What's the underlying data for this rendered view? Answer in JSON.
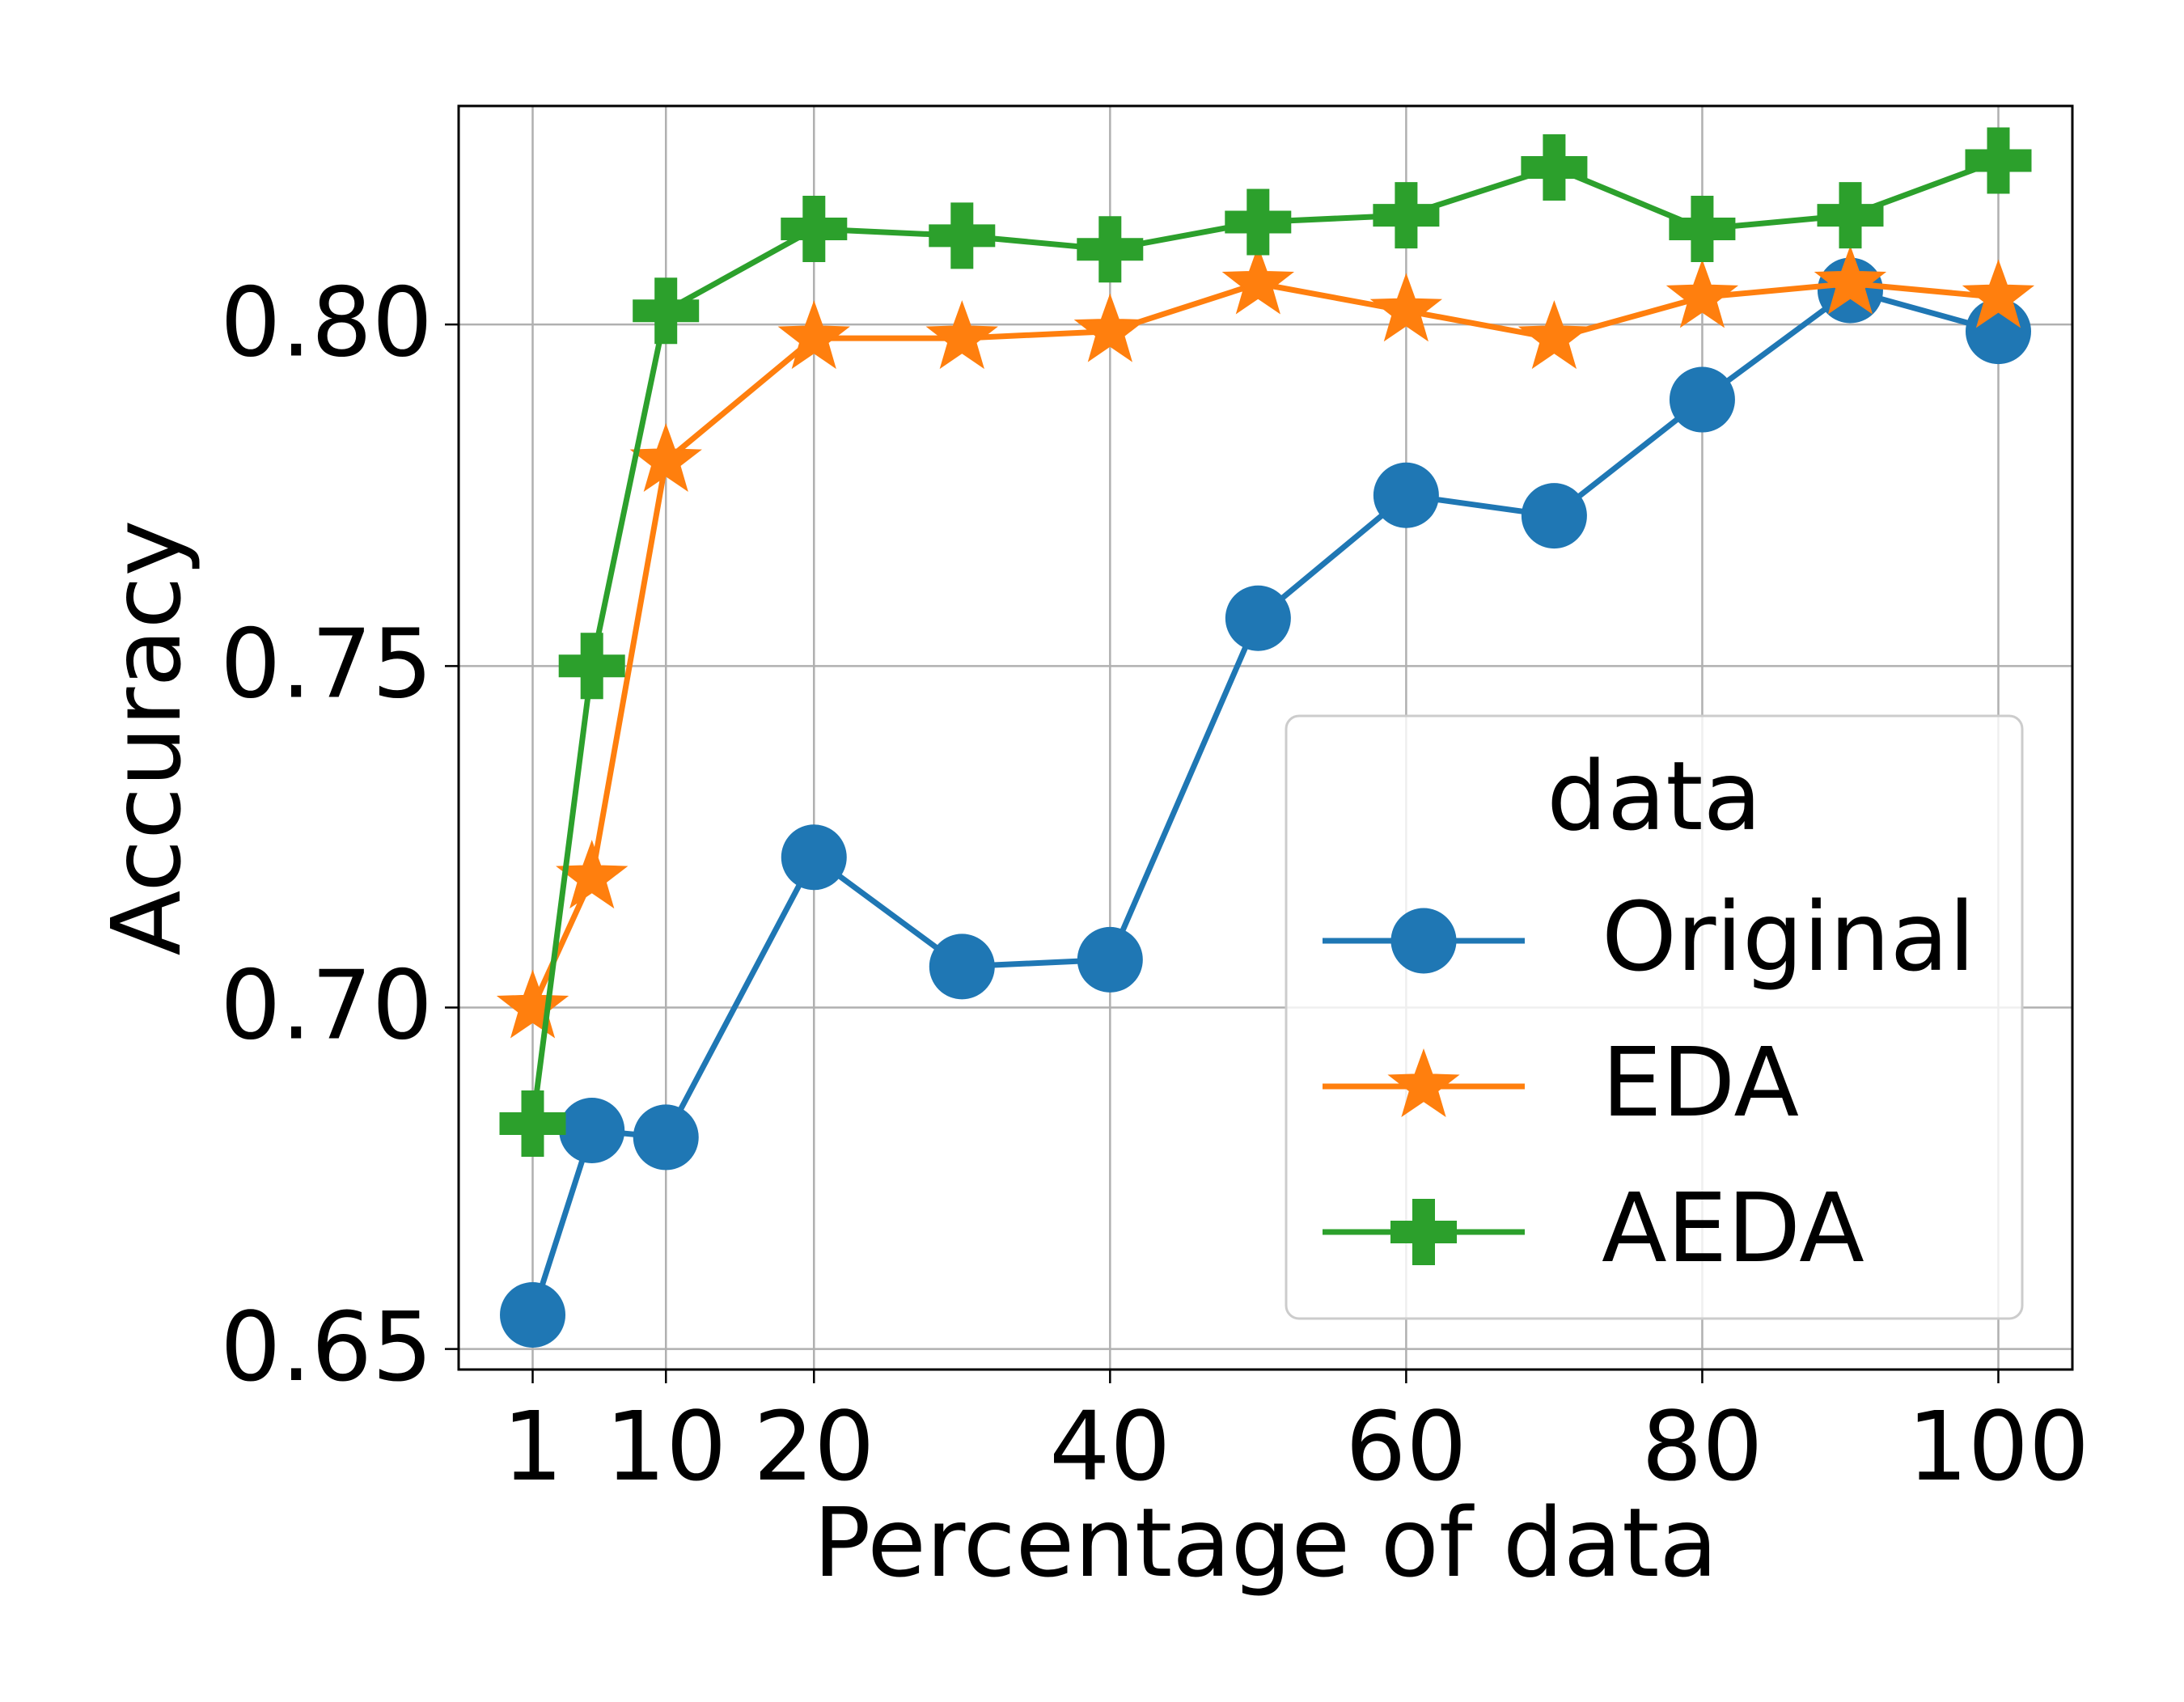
{
  "chart_data": {
    "type": "line",
    "title": "",
    "xlabel": "Percentage of data",
    "ylabel": "Accuracy",
    "x": [
      1,
      5,
      10,
      20,
      30,
      40,
      50,
      60,
      70,
      80,
      90,
      100
    ],
    "xticks": [
      1,
      10,
      20,
      40,
      60,
      80,
      100
    ],
    "xtick_labels": [
      "1",
      "10",
      "20",
      "40",
      "60",
      "80",
      "100"
    ],
    "xlim": [
      -4,
      105
    ],
    "yticks": [
      0.65,
      0.7,
      0.75,
      0.8
    ],
    "ytick_labels": [
      "0.65",
      "0.70",
      "0.75",
      "0.80"
    ],
    "ylim": [
      0.647,
      0.832
    ],
    "grid": true,
    "legend": {
      "title": "data",
      "position": "center-right"
    },
    "series": [
      {
        "name": "Original",
        "color": "#1f77b4",
        "marker": "circle",
        "values": [
          0.655,
          0.682,
          0.681,
          0.722,
          0.706,
          0.707,
          0.757,
          0.775,
          0.772,
          0.789,
          0.805,
          0.799
        ]
      },
      {
        "name": "EDA",
        "color": "#ff7f0e",
        "marker": "star",
        "values": [
          0.7,
          0.719,
          0.78,
          0.798,
          0.798,
          0.799,
          0.806,
          0.802,
          0.798,
          0.804,
          0.806,
          0.804
        ]
      },
      {
        "name": "AEDA",
        "color": "#2ca02c",
        "marker": "plus",
        "values": [
          0.683,
          0.75,
          0.802,
          0.814,
          0.813,
          0.811,
          0.815,
          0.816,
          0.823,
          0.814,
          0.816,
          0.824
        ]
      }
    ]
  }
}
